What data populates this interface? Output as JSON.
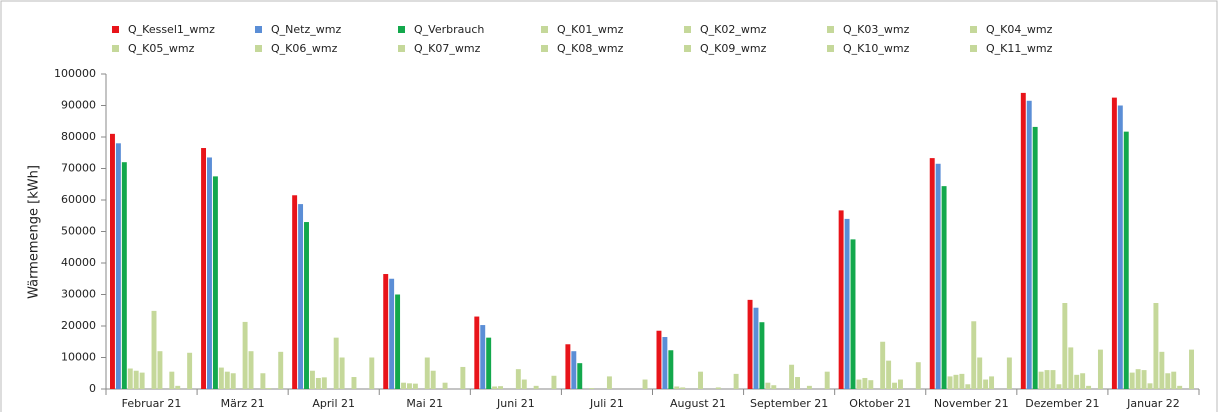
{
  "chart_data": {
    "type": "bar",
    "y_label": "Wärmemenge [kWh]",
    "categories": [
      "Februar 21",
      "März 21",
      "April 21",
      "Mai 21",
      "Juni 21",
      "Juli 21",
      "August 21",
      "September 21",
      "Oktober 21",
      "November 21",
      "Dezember 21",
      "Januar 22"
    ],
    "ylim": [
      0,
      100000
    ],
    "yticks": [
      0,
      10000,
      20000,
      30000,
      40000,
      50000,
      60000,
      70000,
      80000,
      90000,
      100000
    ],
    "grid": false,
    "series": [
      {
        "name": "Q_Kessel1_wmz",
        "color": "#e8141a",
        "values": [
          81000,
          76500,
          61500,
          36500,
          23000,
          14200,
          18500,
          28300,
          56700,
          73300,
          94000,
          92500
        ]
      },
      {
        "name": "Q_Netz_wmz",
        "color": "#5b8ed6",
        "values": [
          78000,
          73500,
          58700,
          35000,
          20300,
          12000,
          16500,
          25800,
          54000,
          71500,
          91500,
          90000
        ]
      },
      {
        "name": "Q_Verbrauch",
        "color": "#13a84c",
        "values": [
          72000,
          67500,
          53000,
          30000,
          16300,
          8200,
          12300,
          21200,
          47500,
          64400,
          83200,
          81700
        ]
      },
      {
        "name": "Q_K01_wmz",
        "color": "#c5d89a",
        "values": [
          6500,
          6800,
          5800,
          2000,
          800,
          0,
          800,
          2000,
          3000,
          4000,
          5500,
          5200
        ]
      },
      {
        "name": "Q_K02_wmz",
        "color": "#c5d89a",
        "values": [
          5800,
          5500,
          3500,
          1800,
          900,
          300,
          500,
          1200,
          3500,
          4500,
          6000,
          6300
        ]
      },
      {
        "name": "Q_K03_wmz",
        "color": "#c5d89a",
        "values": [
          5200,
          5000,
          3700,
          1700,
          0,
          0,
          0,
          0,
          2800,
          4800,
          6000,
          6000
        ]
      },
      {
        "name": "Q_K04_wmz",
        "color": "#c5d89a",
        "values": [
          0,
          0,
          0,
          0,
          0,
          0,
          0,
          0,
          0,
          1500,
          1500,
          1800
        ]
      },
      {
        "name": "Q_K05_wmz",
        "color": "#c5d89a",
        "values": [
          24800,
          21300,
          16300,
          10000,
          6300,
          4000,
          5500,
          7700,
          15000,
          21500,
          27300,
          27300
        ]
      },
      {
        "name": "Q_K06_wmz",
        "color": "#c5d89a",
        "values": [
          12000,
          12000,
          10000,
          5800,
          3000,
          0,
          0,
          3800,
          9000,
          10000,
          13200,
          11800
        ]
      },
      {
        "name": "Q_K07_wmz",
        "color": "#c5d89a",
        "values": [
          0,
          0,
          0,
          0,
          0,
          0,
          0,
          0,
          2000,
          3000,
          4500,
          5000
        ]
      },
      {
        "name": "Q_K08_wmz",
        "color": "#c5d89a",
        "values": [
          5500,
          5000,
          3800,
          2000,
          1000,
          0,
          500,
          1000,
          3000,
          4000,
          5000,
          5500
        ]
      },
      {
        "name": "Q_K09_wmz",
        "color": "#c5d89a",
        "values": [
          1000,
          300,
          0,
          0,
          0,
          0,
          0,
          0,
          0,
          0,
          1000,
          1000
        ]
      },
      {
        "name": "Q_K10_wmz",
        "color": "#c5d89a",
        "values": [
          0,
          0,
          0,
          0,
          0,
          0,
          0,
          0,
          0,
          0,
          0,
          0
        ]
      },
      {
        "name": "Q_K11_wmz",
        "color": "#c5d89a",
        "values": [
          11500,
          11800,
          10000,
          7000,
          4200,
          3000,
          4800,
          5500,
          8500,
          10000,
          12500,
          12500
        ]
      }
    ]
  }
}
